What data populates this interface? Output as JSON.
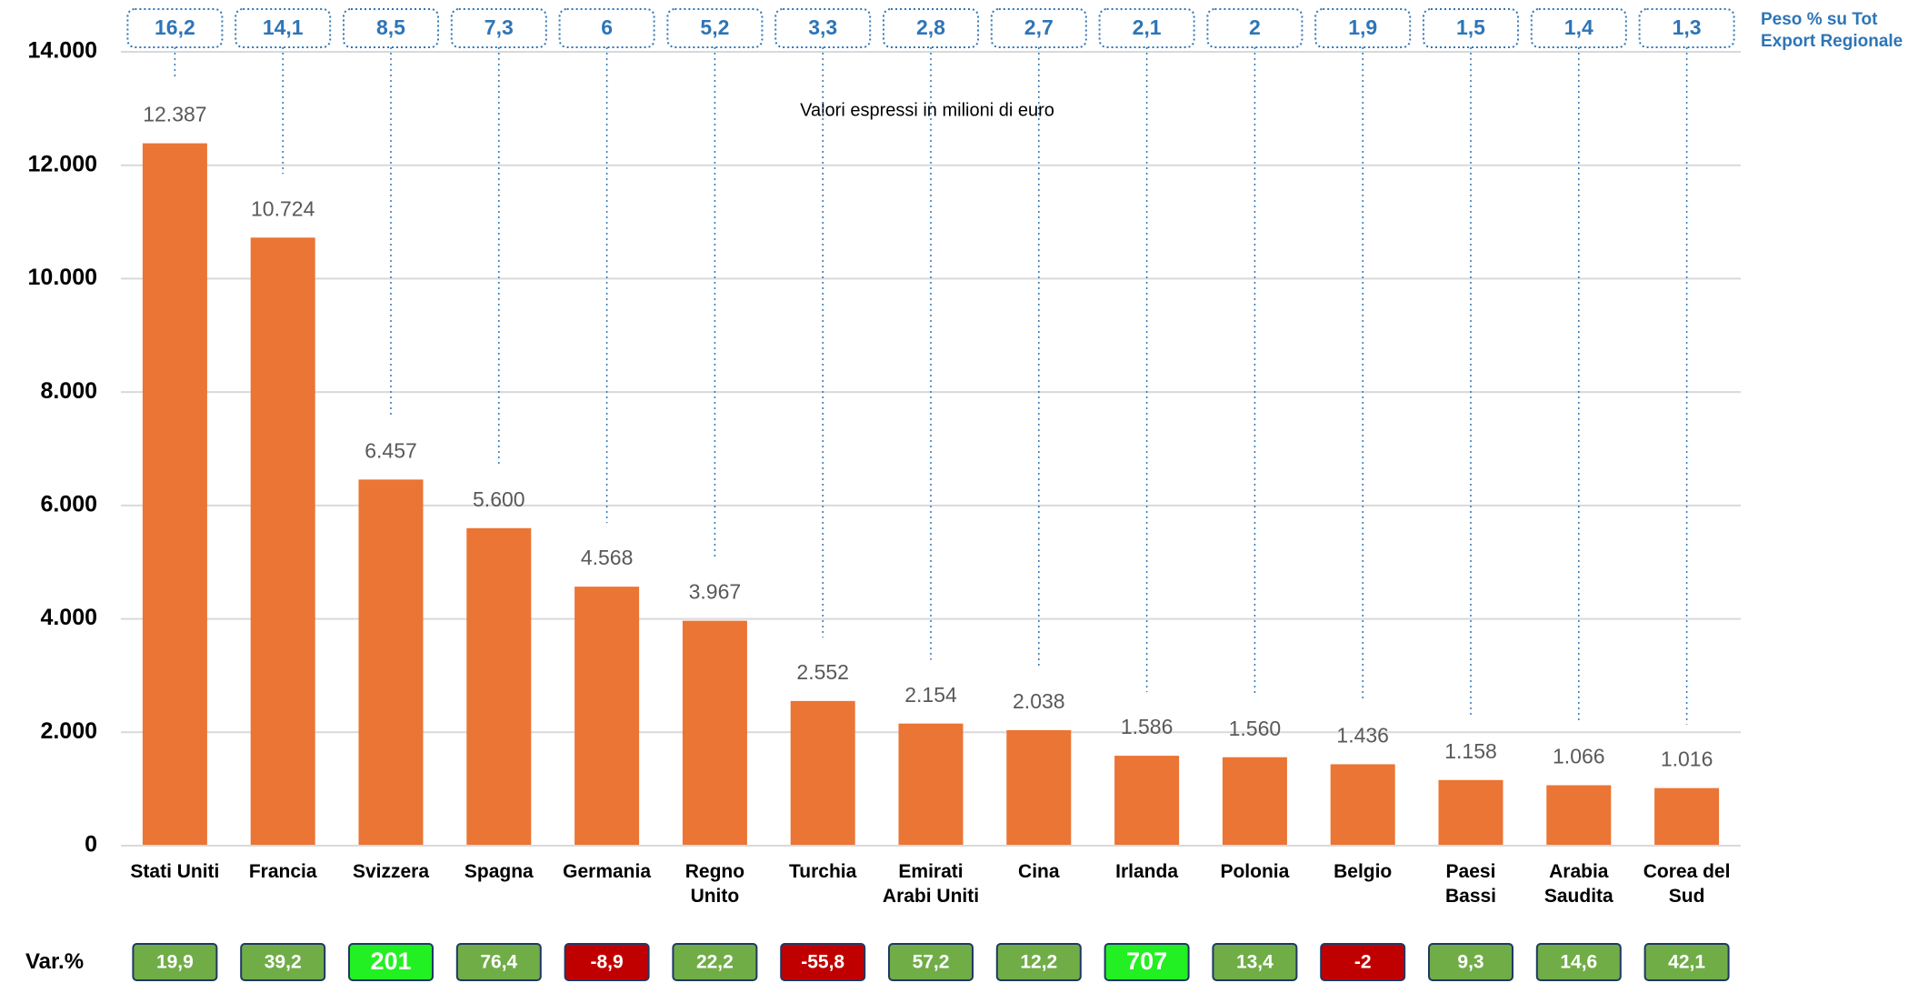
{
  "chart_data": {
    "type": "bar",
    "annotation": "Valori espressi in milioni di euro",
    "categories": [
      "Stati Uniti",
      "Francia",
      "Svizzera",
      "Spagna",
      "Germania",
      "Regno Unito",
      "Turchia",
      "Emirati Arabi Uniti",
      "Cina",
      "Irlanda",
      "Polonia",
      "Belgio",
      "Paesi Bassi",
      "Arabia Saudita",
      "Corea del Sud"
    ],
    "values": [
      12387,
      10724,
      6457,
      5600,
      4568,
      3967,
      2552,
      2154,
      2038,
      1586,
      1560,
      1436,
      1158,
      1066,
      1016
    ],
    "value_labels": [
      "12.387",
      "10.724",
      "6.457",
      "5.600",
      "4.568",
      "3.967",
      "2.552",
      "2.154",
      "2.038",
      "1.586",
      "1.560",
      "1.436",
      "1.158",
      "1.066",
      "1.016"
    ],
    "color": "#ea7535",
    "ylim": [
      0,
      14000
    ],
    "yticks": [
      0,
      {
        "value": 2000,
        "label": "2.000"
      },
      {
        "value": 4000,
        "label": "4.000"
      },
      {
        "value": 6000,
        "label": "6.000"
      },
      {
        "value": 8000,
        "label": "8.000"
      },
      {
        "value": 10000,
        "label": "10.000"
      },
      {
        "value": 12000,
        "label": "12.000"
      },
      {
        "value": 14000,
        "label": "14.000"
      }
    ],
    "grid": true,
    "peso": {
      "label": "Peso % su Tot Export Regionale",
      "values": [
        16.2,
        14.1,
        8.5,
        7.3,
        6,
        5.2,
        3.3,
        2.8,
        2.7,
        2.1,
        2,
        1.9,
        1.5,
        1.4,
        1.3
      ],
      "value_labels": [
        "16,2",
        "14,1",
        "8,5",
        "7,3",
        "6",
        "5,2",
        "3,3",
        "2,8",
        "2,7",
        "2,1",
        "2",
        "1,9",
        "1,5",
        "1,4",
        "1,3"
      ]
    },
    "var": {
      "label": "Var.%",
      "values": [
        19.9,
        39.2,
        201,
        76.4,
        -8.9,
        22.2,
        -55.8,
        57.2,
        12.2,
        707,
        13.4,
        -2,
        9.3,
        14.6,
        42.1
      ],
      "value_labels": [
        "19,9",
        "39,2",
        "201",
        "76,4",
        "-8,9",
        "22,2",
        "-55,8",
        "57,2",
        "12,2",
        "707",
        "13,4",
        "-2",
        "9,3",
        "14,6",
        "42,1"
      ],
      "colors": [
        "#70ad47",
        "#70ad47",
        "#22f022",
        "#70ad47",
        "#c00000",
        "#70ad47",
        "#c00000",
        "#70ad47",
        "#70ad47",
        "#22f022",
        "#70ad47",
        "#c00000",
        "#70ad47",
        "#70ad47",
        "#70ad47"
      ]
    }
  }
}
